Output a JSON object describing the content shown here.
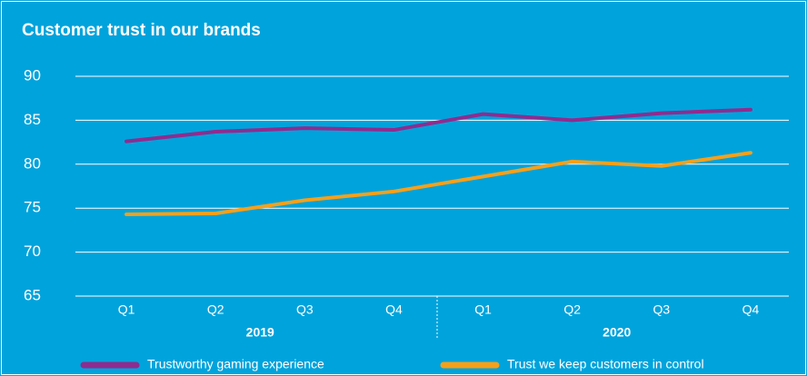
{
  "chart_data": {
    "type": "line",
    "title": "Customer trust in our brands",
    "categories": [
      "Q1",
      "Q2",
      "Q3",
      "Q4",
      "Q1",
      "Q2",
      "Q3",
      "Q4"
    ],
    "groups": [
      "2019",
      "2020"
    ],
    "series": [
      {
        "name": "Trustworthy gaming experience",
        "color": "#8e2c8f",
        "values": [
          82.6,
          83.7,
          84.1,
          83.9,
          85.7,
          85.0,
          85.8,
          86.2
        ]
      },
      {
        "name": "Trust we keep customers in control",
        "color": "#f6a01a",
        "values": [
          74.3,
          74.4,
          75.9,
          76.9,
          78.6,
          80.3,
          79.8,
          81.3
        ]
      }
    ],
    "ylim": [
      65,
      90
    ],
    "yticks": [
      65,
      70,
      75,
      80,
      85,
      90
    ],
    "grid": true
  }
}
